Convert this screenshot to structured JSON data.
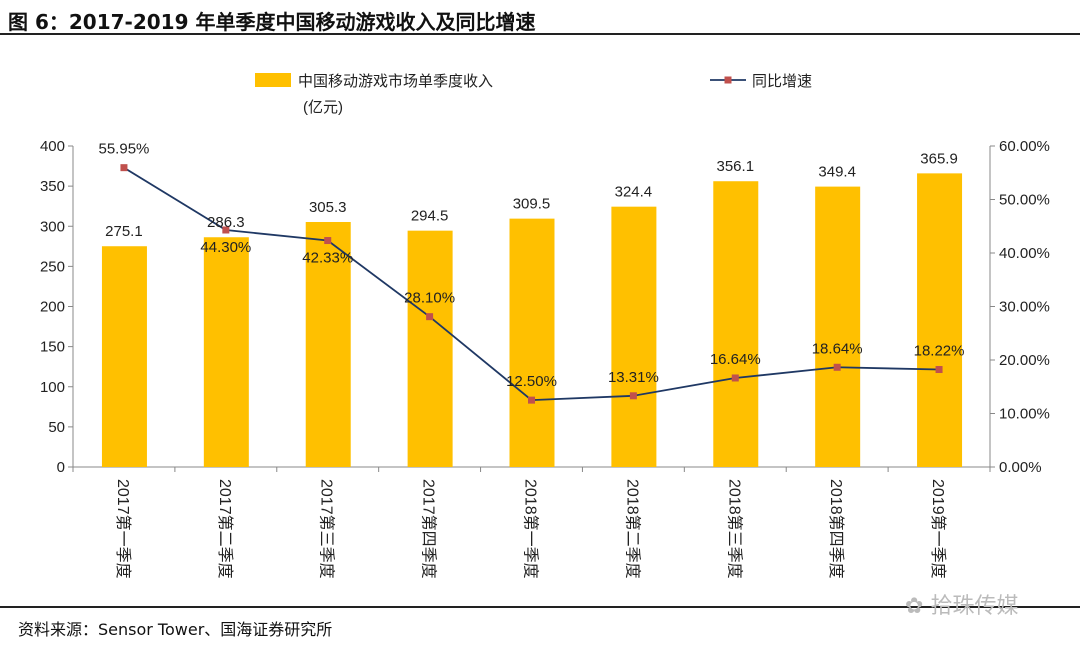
{
  "title": "图 6：2017-2019 年单季度中国移动游戏收入及同比增速",
  "source": "资料来源：Sensor Tower、国海证券研究所",
  "watermark": "拾珠传媒",
  "colors": {
    "bar": "#FFC000",
    "line": "#1F3864",
    "marker": "#C0504D"
  },
  "chart_data": {
    "type": "bar+line",
    "categories": [
      "2017第一季度",
      "2017第二季度",
      "2017第三季度",
      "2017第四季度",
      "2018第一季度",
      "2018第二季度",
      "2018第三季度",
      "2018第四季度",
      "2019第一季度"
    ],
    "series": [
      {
        "name": "中国移动游戏市场单季度收入",
        "name_line2": "(亿元)",
        "type": "bar",
        "axis": "left",
        "values": [
          275.1,
          286.3,
          305.3,
          294.5,
          309.5,
          324.4,
          356.1,
          349.4,
          365.9
        ],
        "labels": [
          "275.1",
          "286.3",
          "305.3",
          "294.5",
          "309.5",
          "324.4",
          "356.1",
          "349.4",
          "365.9"
        ]
      },
      {
        "name": "同比增速",
        "type": "line",
        "axis": "right",
        "values": [
          55.95,
          44.3,
          42.33,
          28.1,
          12.5,
          13.31,
          16.64,
          18.64,
          18.22
        ],
        "labels": [
          "55.95%",
          "44.30%",
          "42.33%",
          "28.10%",
          "12.50%",
          "13.31%",
          "16.64%",
          "18.64%",
          "18.22%"
        ]
      }
    ],
    "y_left": {
      "range": [
        0,
        400
      ],
      "ticks": [
        "0",
        "50",
        "100",
        "150",
        "200",
        "250",
        "300",
        "350",
        "400"
      ]
    },
    "y_right": {
      "range": [
        0,
        60
      ],
      "ticks": [
        "0.00%",
        "10.00%",
        "20.00%",
        "30.00%",
        "40.00%",
        "50.00%",
        "60.00%"
      ]
    },
    "legend": "top",
    "grid": false
  }
}
